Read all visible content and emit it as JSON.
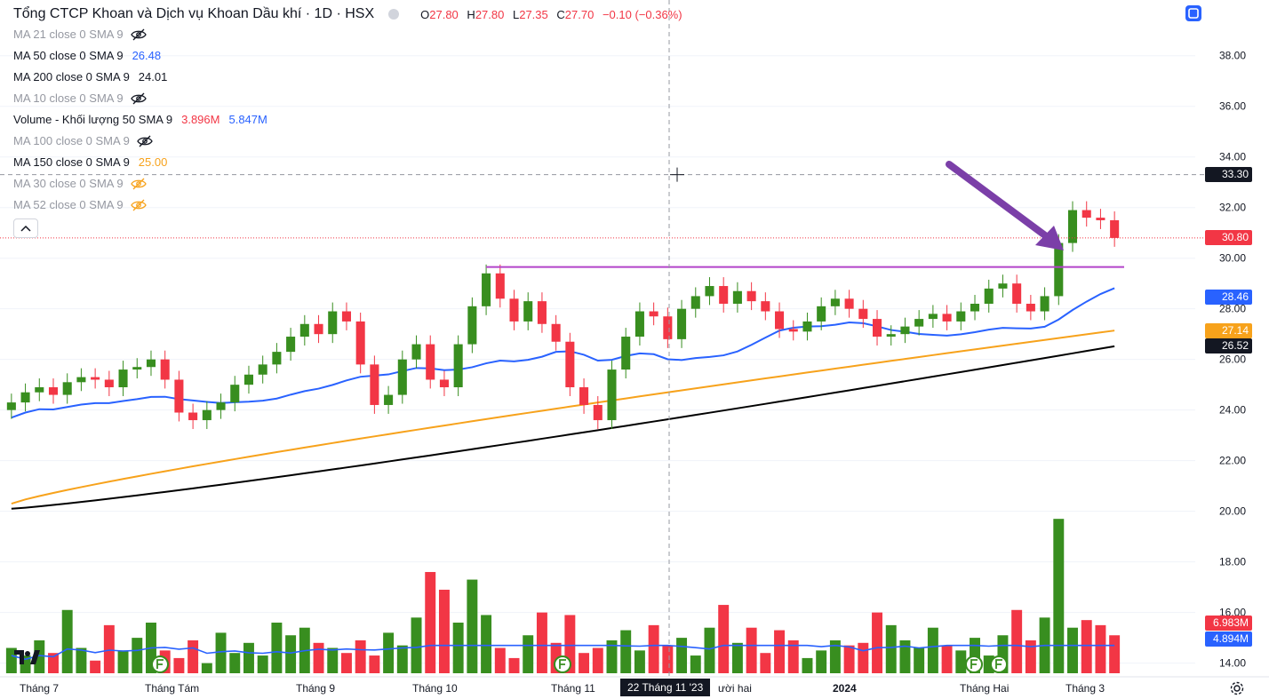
{
  "header": {
    "title": "Tổng CTCP Khoan và Dịch vụ Khoan Dầu khí · 1D · HSX",
    "ohlc": [
      {
        "k": "O",
        "v": "27.80"
      },
      {
        "k": "H",
        "v": "27.80"
      },
      {
        "k": "L",
        "v": "27.35"
      },
      {
        "k": "C",
        "v": "27.70"
      }
    ],
    "change": "−0.10 (−0.36%)"
  },
  "indicators": [
    {
      "name": "MA 21 close 0 SMA 9",
      "hidden": true,
      "values": [],
      "icon": "eye-off-icon",
      "icon_color": "#131722"
    },
    {
      "name": "MA 50 close 0 SMA 9",
      "hidden": false,
      "values": [
        {
          "text": "26.48",
          "color": "#2962ff"
        }
      ]
    },
    {
      "name": "MA 200 close 0 SMA 9",
      "hidden": false,
      "values": [
        {
          "text": "24.01",
          "color": "#131722"
        }
      ]
    },
    {
      "name": "MA 10 close 0 SMA 9",
      "hidden": true,
      "values": [],
      "icon": "eye-off-icon",
      "icon_color": "#131722"
    },
    {
      "name": "Volume - Khối lượng 50 SMA 9",
      "hidden": false,
      "values": [
        {
          "text": "3.896M",
          "color": "#f23645"
        },
        {
          "text": "5.847M",
          "color": "#2962ff"
        }
      ]
    },
    {
      "name": "MA 100 close 0 SMA 9",
      "hidden": true,
      "values": [],
      "icon": "eye-off-icon",
      "icon_color": "#131722"
    },
    {
      "name": "MA 150 close 0 SMA 9",
      "hidden": false,
      "values": [
        {
          "text": "25.00",
          "color": "#f7a21b"
        }
      ]
    },
    {
      "name": "MA 30 close 0 SMA 9",
      "hidden": true,
      "values": [],
      "icon": "eye-off-icon",
      "icon_color": "#f7a21b"
    },
    {
      "name": "MA 52 close 0 SMA 9",
      "hidden": true,
      "values": [],
      "icon": "eye-off-icon",
      "icon_color": "#f7a21b"
    }
  ],
  "price_axis": {
    "ticks": [
      "38.00",
      "36.00",
      "34.00",
      "32.00",
      "30.00",
      "28.00",
      "26.00",
      "24.00",
      "22.00",
      "20.00",
      "18.00",
      "16.00",
      "14.00"
    ],
    "tags": [
      {
        "text": "33.30",
        "value": 33.3,
        "bg": "#131722"
      },
      {
        "text": "30.80",
        "value": 30.8,
        "bg": "#f23645"
      },
      {
        "text": "28.46",
        "value": 28.46,
        "bg": "#2962ff"
      },
      {
        "text": "27.14",
        "value": 27.14,
        "bg": "#f7a21b"
      },
      {
        "text": "26.52",
        "value": 26.52,
        "bg": "#131722"
      }
    ],
    "volume_tags": [
      {
        "text": "6.983M",
        "bg": "#f23645"
      },
      {
        "text": "4.894M",
        "bg": "#2962ff"
      }
    ]
  },
  "time_axis": {
    "labels": [
      {
        "text": "Tháng 7",
        "bold": false
      },
      {
        "text": "Tháng Tám",
        "bold": false
      },
      {
        "text": "Tháng 9",
        "bold": false
      },
      {
        "text": "Tháng 10",
        "bold": false
      },
      {
        "text": "Tháng 11",
        "bold": false
      },
      {
        "text": "ười hai",
        "bold": false
      },
      {
        "text": "2024",
        "bold": true
      },
      {
        "text": "Tháng Hai",
        "bold": false
      },
      {
        "text": "Tháng 3",
        "bold": false
      }
    ],
    "crosshair_date": "22 Tháng 11 '23"
  },
  "colors": {
    "up": "#388e1f",
    "down": "#f23645",
    "ma50": "#2962ff",
    "ma150": "#f7a21b",
    "ma200": "#000000",
    "resistance": "#b243c9",
    "arrow": "#7b3fa8",
    "vol_ma": "#2962ff"
  },
  "chart_data": {
    "type": "candlestick",
    "ylim": [
      13.6,
      39.5
    ],
    "resistance_level": 29.65,
    "crosshair_price": 33.3,
    "last_price": 30.8,
    "price_series": [
      24.3,
      24.7,
      24.9,
      24.6,
      25.1,
      25.3,
      25.2,
      24.9,
      25.6,
      25.7,
      26.0,
      25.2,
      23.9,
      23.6,
      24.0,
      24.3,
      25.0,
      25.4,
      25.8,
      26.3,
      26.9,
      27.4,
      27.0,
      27.9,
      27.5,
      25.8,
      24.2,
      24.6,
      26.0,
      26.6,
      25.2,
      24.9,
      26.6,
      28.1,
      29.4,
      28.4,
      27.5,
      28.3,
      27.4,
      26.7,
      24.9,
      24.2,
      23.6,
      25.6,
      26.9,
      27.9,
      27.7,
      26.8,
      28.0,
      28.5,
      28.9,
      28.2,
      28.7,
      28.3,
      27.9,
      27.2,
      27.1,
      27.5,
      28.1,
      28.4,
      28.0,
      27.6,
      26.9,
      27.0,
      27.3,
      27.6,
      27.8,
      27.5,
      27.9,
      28.2,
      28.8,
      29.0,
      28.2,
      27.9,
      28.5,
      30.6,
      31.9,
      31.6,
      31.5,
      30.8
    ],
    "volume_series": [
      14.6,
      14.3,
      14.9,
      14.4,
      16.1,
      14.6,
      14.1,
      15.5,
      14.5,
      15.0,
      15.6,
      14.5,
      14.2,
      14.9,
      14.0,
      15.2,
      14.4,
      14.8,
      14.3,
      15.6,
      15.1,
      15.4,
      14.8,
      14.6,
      14.4,
      14.9,
      14.3,
      15.2,
      14.7,
      15.8,
      17.6,
      16.9,
      15.6,
      17.3,
      15.9,
      14.6,
      14.2,
      15.1,
      16.0,
      14.8,
      15.9,
      14.4,
      14.6,
      14.9,
      15.3,
      14.5,
      15.5,
      14.7,
      15.0,
      14.3,
      15.4,
      16.3,
      14.8,
      15.4,
      14.4,
      15.3,
      14.9,
      14.2,
      14.5,
      14.9,
      14.7,
      14.8,
      16.0,
      15.5,
      14.9,
      14.6,
      15.4,
      14.7,
      14.5,
      15.0,
      14.3,
      15.1,
      16.1,
      14.9,
      15.8,
      19.7,
      15.4,
      15.7,
      15.5,
      15.1
    ]
  }
}
